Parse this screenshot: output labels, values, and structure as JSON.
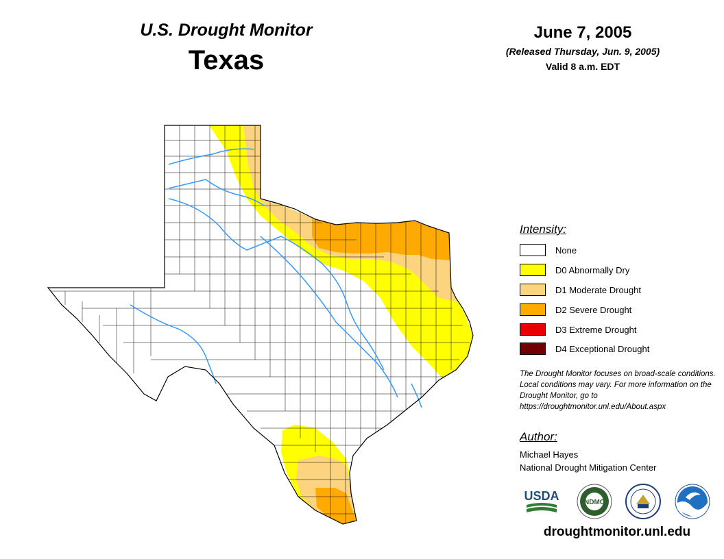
{
  "header": {
    "subtitle": "U.S. Drought Monitor",
    "state": "Texas",
    "date": "June 7, 2005",
    "released": "(Released Thursday, Jun. 9, 2005)",
    "valid": "Valid 8 a.m. EDT"
  },
  "legend": {
    "title": "Intensity:",
    "items": [
      {
        "label": "None",
        "color": "#ffffff"
      },
      {
        "label": "D0 Abnormally Dry",
        "color": "#ffff00"
      },
      {
        "label": "D1 Moderate Drought",
        "color": "#fcd37f"
      },
      {
        "label": "D2 Severe Drought",
        "color": "#ffaa00"
      },
      {
        "label": "D3 Extreme Drought",
        "color": "#e60000"
      },
      {
        "label": "D4 Exceptional Drought",
        "color": "#730000"
      }
    ]
  },
  "note": "The Drought Monitor focuses on broad-scale conditions. Local conditions may vary. For more information on the Drought Monitor, go to https://droughtmonitor.unl.edu/About.aspx",
  "author": {
    "title": "Author:",
    "name": "Michael Hayes",
    "org": "National Drought Mitigation Center"
  },
  "logos": [
    {
      "label": "USDA",
      "icon": "usda-logo"
    },
    {
      "label": "NDMC",
      "icon": "ndmc-seal"
    },
    {
      "label": "",
      "icon": "commerce-seal"
    },
    {
      "label": "",
      "icon": "noaa-logo"
    }
  ],
  "url": "droughtmonitor.unl.edu",
  "colors": {
    "river": "#3399ff",
    "county_line": "#000000"
  }
}
